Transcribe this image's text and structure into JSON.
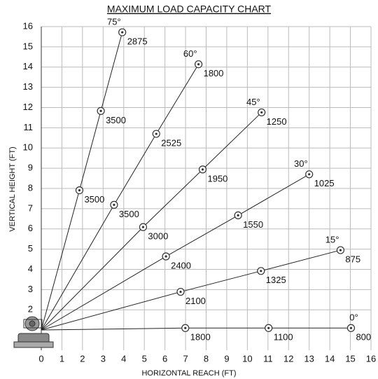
{
  "chart_data": {
    "type": "load-chart",
    "title": "MAXIMUM LOAD CAPACITY CHART",
    "xlabel": "HORIZONTAL REACH (FT)",
    "ylabel": "VERTICAL HEIGHT (FT)",
    "xlim": [
      0,
      16
    ],
    "ylim": [
      0,
      16
    ],
    "xticks": [
      0,
      1,
      2,
      3,
      4,
      5,
      6,
      7,
      8,
      9,
      10,
      11,
      12,
      13,
      14,
      15,
      16
    ],
    "yticks": [
      2,
      3,
      4,
      5,
      6,
      7,
      8,
      9,
      10,
      11,
      12,
      13,
      14,
      15,
      16
    ],
    "grid": true,
    "series": [
      {
        "name": "75°",
        "x": [
          1.85,
          2.89,
          3.93
        ],
        "values": [
          7.91,
          11.83,
          15.72
        ],
        "loads": [
          3500,
          3500,
          2875
        ]
      },
      {
        "name": "60°",
        "x": [
          3.53,
          5.58,
          7.63
        ],
        "values": [
          7.19,
          10.7,
          14.14
        ],
        "loads": [
          3500,
          2525,
          1800
        ]
      },
      {
        "name": "45°",
        "x": [
          4.94,
          7.83,
          10.69
        ],
        "values": [
          6.09,
          8.94,
          11.76
        ],
        "loads": [
          3000,
          1950,
          1250
        ]
      },
      {
        "name": "30°",
        "x": [
          6.05,
          9.55,
          13.0
        ],
        "values": [
          4.64,
          6.67,
          8.7
        ],
        "loads": [
          2400,
          1550,
          1025
        ]
      },
      {
        "name": "15°",
        "x": [
          6.76,
          10.66,
          14.52
        ],
        "values": [
          2.89,
          3.92,
          4.95
        ],
        "loads": [
          2100,
          1325,
          875
        ]
      },
      {
        "name": "0°",
        "x": [
          6.99,
          11.03,
          15.03
        ],
        "values": [
          1.1,
          1.1,
          1.1
        ],
        "loads": [
          1800,
          1100,
          800
        ]
      }
    ]
  }
}
